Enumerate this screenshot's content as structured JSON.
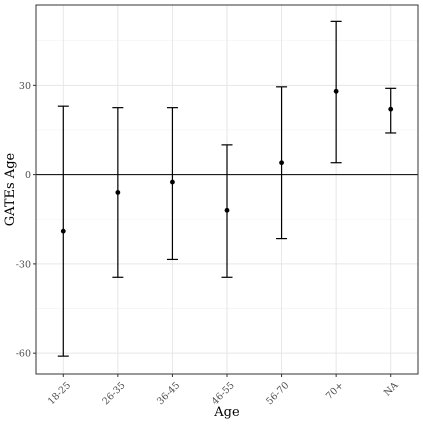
{
  "chart_data": {
    "type": "scatter",
    "xlabel": "Age",
    "ylabel": "GATEs Age",
    "categories": [
      "18-25",
      "26-35",
      "36-45",
      "46-55",
      "56-70",
      "70+",
      "NA"
    ],
    "series": [
      {
        "points": [
          {
            "category": "18-25",
            "estimate": -19,
            "lower": -61,
            "upper": 23
          },
          {
            "category": "26-35",
            "estimate": -6,
            "lower": -34.5,
            "upper": 22.5
          },
          {
            "category": "36-45",
            "estimate": -2.5,
            "lower": -28.5,
            "upper": 22.5
          },
          {
            "category": "46-55",
            "estimate": -12,
            "lower": -34.5,
            "upper": 10
          },
          {
            "category": "56-70",
            "estimate": 4,
            "lower": -21.5,
            "upper": 29.5
          },
          {
            "category": "70+",
            "estimate": 28,
            "lower": 4,
            "upper": 51.5
          },
          {
            "category": "NA",
            "estimate": 22,
            "lower": 14,
            "upper": 29
          }
        ]
      }
    ],
    "yticks": [
      -60,
      -30,
      0,
      30
    ],
    "ylim": [
      -67,
      57
    ],
    "reference_line_y": 0,
    "grid": true,
    "legend": "none"
  }
}
